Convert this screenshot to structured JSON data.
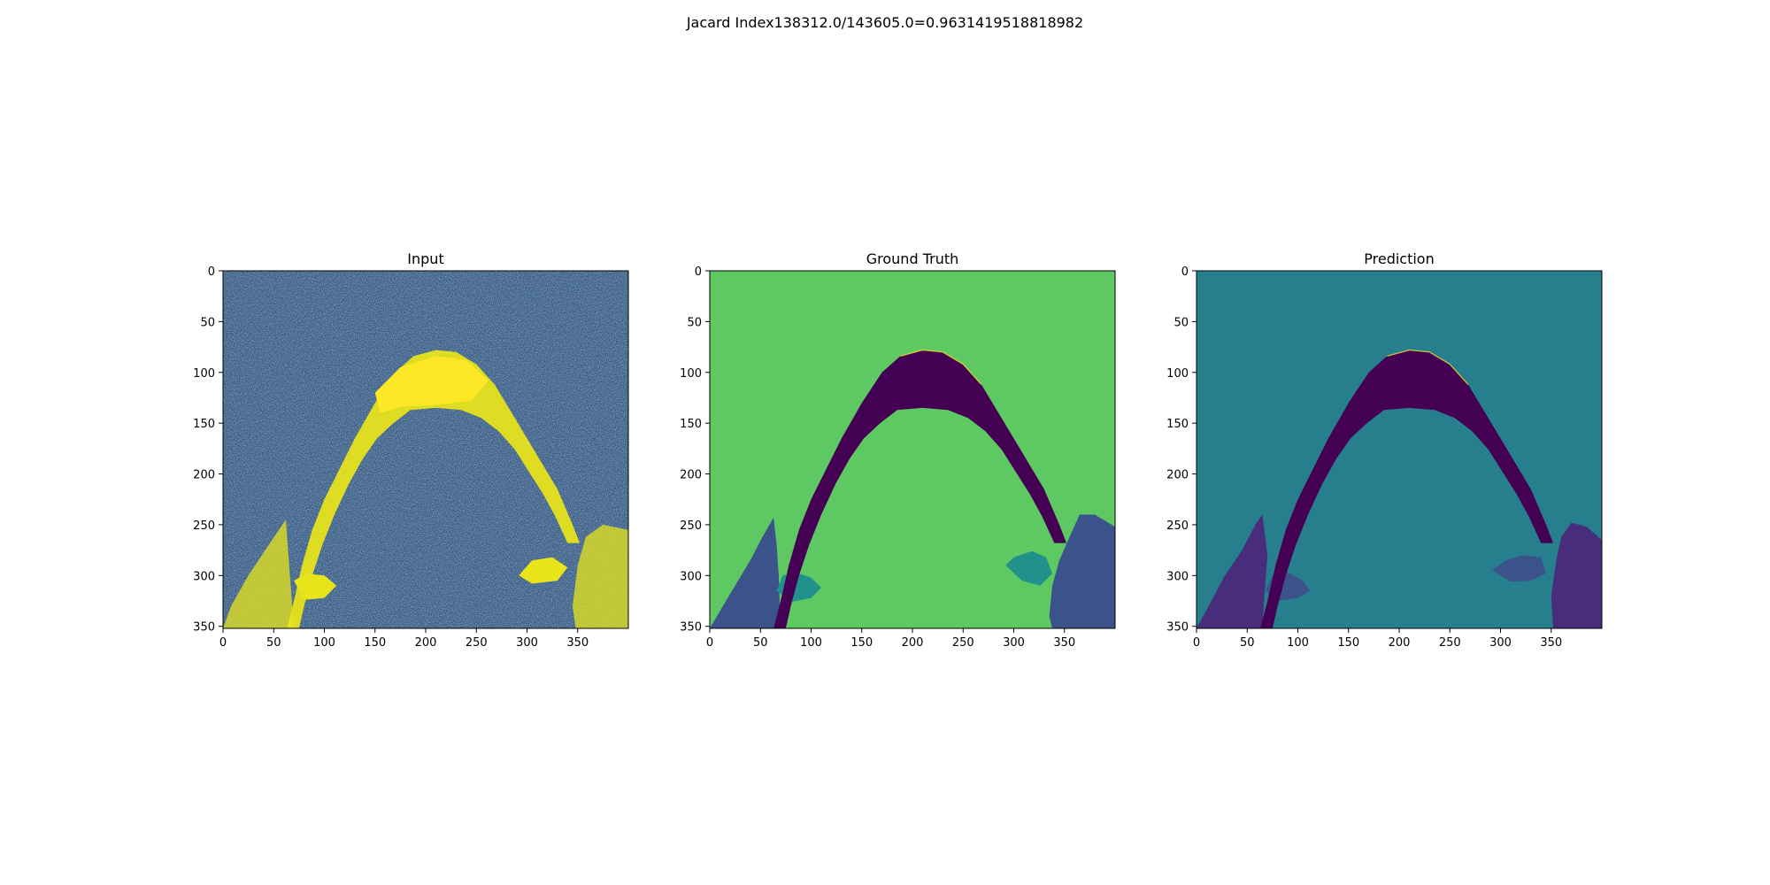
{
  "figure": {
    "suptitle": "Jacard Index138312.0/143605.0=0.9631419518818982"
  },
  "chart_data": [
    {
      "type": "heatmap",
      "title": "Input",
      "xlim": [
        0,
        400
      ],
      "ylim": [
        352,
        0
      ],
      "xticks": [
        0,
        50,
        100,
        150,
        200,
        250,
        300,
        350
      ],
      "yticks": [
        0,
        50,
        100,
        150,
        200,
        250,
        300,
        350
      ],
      "colormap": "viridis",
      "colors": {
        "noise_dark": "#3b528b",
        "noise_mid": "#21918c",
        "band": "#e8e419",
        "band_bright": "#fde725"
      }
    },
    {
      "type": "heatmap",
      "title": "Ground Truth",
      "xlim": [
        0,
        400
      ],
      "ylim": [
        352,
        0
      ],
      "xticks": [
        0,
        50,
        100,
        150,
        200,
        250,
        300,
        350
      ],
      "yticks": [
        0,
        50,
        100,
        150,
        200,
        250,
        300,
        350
      ],
      "colormap": "viridis",
      "colors": {
        "background": "#5ec962",
        "arc": "#440154",
        "side": "#3b528b",
        "blob": "#21918c",
        "edge": "#fde725"
      }
    },
    {
      "type": "heatmap",
      "title": "Prediction",
      "xlim": [
        0,
        400
      ],
      "ylim": [
        352,
        0
      ],
      "xticks": [
        0,
        50,
        100,
        150,
        200,
        250,
        300,
        350
      ],
      "yticks": [
        0,
        50,
        100,
        150,
        200,
        250,
        300,
        350
      ],
      "colormap": "viridis",
      "colors": {
        "background": "#277f8e",
        "arc": "#440154",
        "side": "#472d7b",
        "blob": "#3b528b",
        "edge": "#fde725"
      }
    }
  ]
}
